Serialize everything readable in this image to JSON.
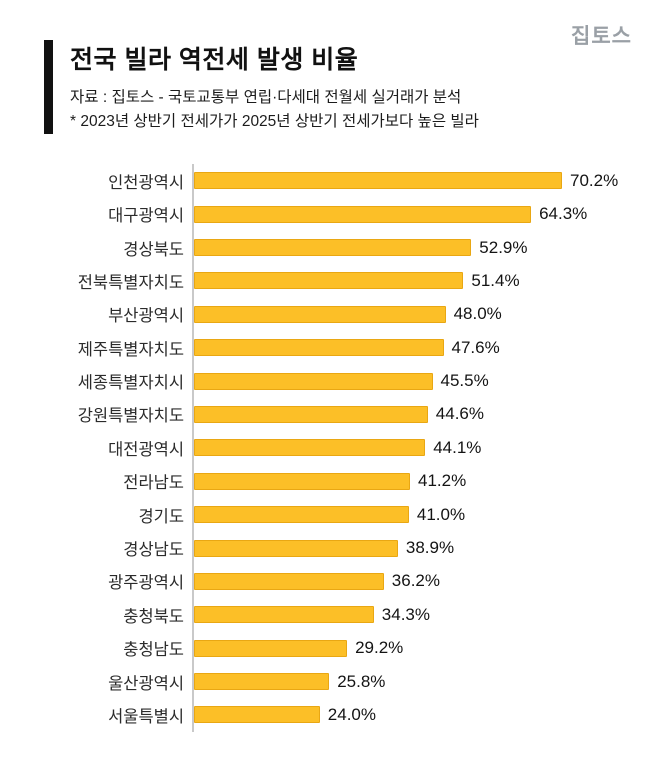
{
  "logo": "집토스",
  "header": {
    "title": "전국 빌라 역전세 발생 비율",
    "source": "자료 : 집토스 - 국토교통부 연립·다세대 전월세 실거래가 분석",
    "note": "* 2023년 상반기 전세가가 2025년 상반기 전세가보다 높은 빌라"
  },
  "colors": {
    "bar_fill": "#fcbf27",
    "bar_border": "#e9a713",
    "accent_bar": "#111111",
    "axis_line": "#c9c9c9",
    "logo_gray": "#9aa0a6"
  },
  "chart_data": {
    "type": "bar",
    "orientation": "horizontal",
    "title": "전국 빌라 역전세 발생 비율",
    "unit": "%",
    "xlim": [
      0,
      75
    ],
    "grid": false,
    "legend": false,
    "categories": [
      "인천광역시",
      "대구광역시",
      "경상북도",
      "전북특별자치도",
      "부산광역시",
      "제주특별자치도",
      "세종특별자치시",
      "강원특별자치도",
      "대전광역시",
      "전라남도",
      "경기도",
      "경상남도",
      "광주광역시",
      "충청북도",
      "충청남도",
      "울산광역시",
      "서울특별시"
    ],
    "values": [
      70.2,
      64.3,
      52.9,
      51.4,
      48.0,
      47.6,
      45.5,
      44.6,
      44.1,
      41.2,
      41.0,
      38.9,
      36.2,
      34.3,
      29.2,
      25.8,
      24.0
    ],
    "value_labels": [
      "70.2%",
      "64.3%",
      "52.9%",
      "51.4%",
      "48.0%",
      "47.6%",
      "45.5%",
      "44.6%",
      "44.1%",
      "41.2%",
      "41.0%",
      "38.9%",
      "36.2%",
      "34.3%",
      "29.2%",
      "25.8%",
      "24.0%"
    ]
  }
}
